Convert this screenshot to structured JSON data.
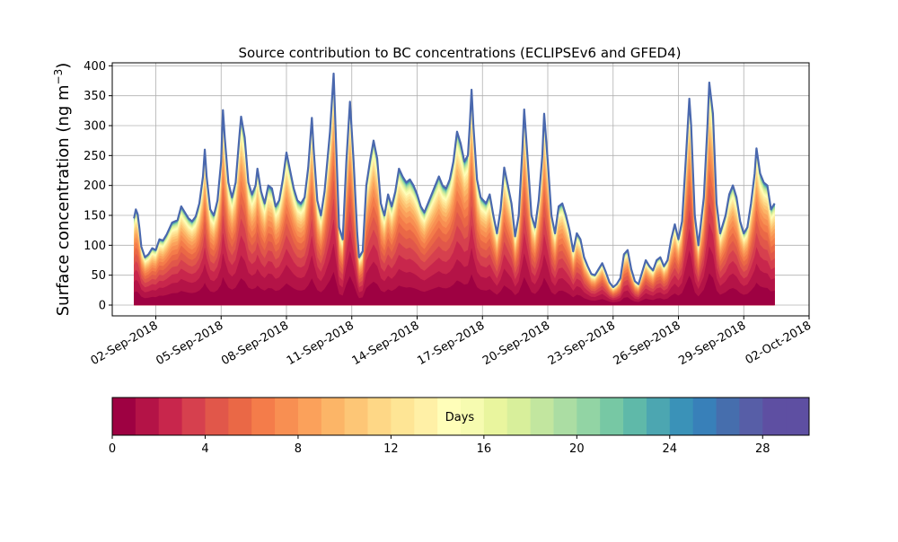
{
  "chart_data": [
    {
      "type": "area",
      "title": "Source contribution to BC concentrations (ECLIPSEv6 and GFED4)",
      "ylabel": "Surface concentration (ng m",
      "ylabel_sup": "−3",
      "ylabel_close": ")",
      "xlabel": "",
      "x_start": "2018-09-01",
      "x_end": "2018-09-30",
      "x_range": [
        "2018-08-31",
        "2018-10-02"
      ],
      "xticks": [
        "02-Sep-2018",
        "05-Sep-2018",
        "08-Sep-2018",
        "11-Sep-2018",
        "14-Sep-2018",
        "17-Sep-2018",
        "20-Sep-2018",
        "23-Sep-2018",
        "26-Sep-2018",
        "29-Sep-2018",
        "02-Oct-2018"
      ],
      "ylim": [
        -18,
        405
      ],
      "yticks": [
        "0",
        "50",
        "100",
        "150",
        "200",
        "250",
        "300",
        "350",
        "400"
      ],
      "grid": true,
      "stack_layers": 30,
      "series_note": "stacked contribution by age of emission (days 0 to 30)",
      "total": [
        [
          "2018-09-01T00",
          145
        ],
        [
          "2018-09-01T02",
          160
        ],
        [
          "2018-09-01T04",
          152
        ],
        [
          "2018-09-01T06",
          128
        ],
        [
          "2018-09-01T08",
          98
        ],
        [
          "2018-09-01T12",
          80
        ],
        [
          "2018-09-01T16",
          85
        ],
        [
          "2018-09-01T20",
          95
        ],
        [
          "2018-09-02T00",
          92
        ],
        [
          "2018-09-02T04",
          110
        ],
        [
          "2018-09-02T08",
          108
        ],
        [
          "2018-09-02T12",
          118
        ],
        [
          "2018-09-02T18",
          138
        ],
        [
          "2018-09-03T00",
          142
        ],
        [
          "2018-09-03T04",
          165
        ],
        [
          "2018-09-03T08",
          155
        ],
        [
          "2018-09-03T12",
          145
        ],
        [
          "2018-09-03T16",
          140
        ],
        [
          "2018-09-03T20",
          148
        ],
        [
          "2018-09-04T00",
          170
        ],
        [
          "2018-09-04T04",
          215
        ],
        [
          "2018-09-04T06",
          260
        ],
        [
          "2018-09-04T08",
          215
        ],
        [
          "2018-09-04T12",
          160
        ],
        [
          "2018-09-04T16",
          150
        ],
        [
          "2018-09-04T20",
          175
        ],
        [
          "2018-09-05T00",
          240
        ],
        [
          "2018-09-05T02",
          326
        ],
        [
          "2018-09-05T04",
          280
        ],
        [
          "2018-09-05T08",
          205
        ],
        [
          "2018-09-05T12",
          180
        ],
        [
          "2018-09-05T16",
          205
        ],
        [
          "2018-09-05T20",
          280
        ],
        [
          "2018-09-05T22",
          315
        ],
        [
          "2018-09-06T02",
          280
        ],
        [
          "2018-09-06T06",
          205
        ],
        [
          "2018-09-06T10",
          185
        ],
        [
          "2018-09-06T14",
          200
        ],
        [
          "2018-09-06T16",
          228
        ],
        [
          "2018-09-06T20",
          190
        ],
        [
          "2018-09-07T00",
          170
        ],
        [
          "2018-09-07T04",
          200
        ],
        [
          "2018-09-07T08",
          195
        ],
        [
          "2018-09-07T12",
          165
        ],
        [
          "2018-09-07T16",
          175
        ],
        [
          "2018-09-07T20",
          210
        ],
        [
          "2018-09-08T00",
          255
        ],
        [
          "2018-09-08T04",
          225
        ],
        [
          "2018-09-08T08",
          195
        ],
        [
          "2018-09-08T12",
          175
        ],
        [
          "2018-09-08T16",
          170
        ],
        [
          "2018-09-08T20",
          180
        ],
        [
          "2018-09-09T00",
          230
        ],
        [
          "2018-09-09T04",
          313
        ],
        [
          "2018-09-09T06",
          260
        ],
        [
          "2018-09-09T10",
          175
        ],
        [
          "2018-09-09T14",
          150
        ],
        [
          "2018-09-09T18",
          190
        ],
        [
          "2018-09-10T00",
          290
        ],
        [
          "2018-09-10T04",
          387
        ],
        [
          "2018-09-10T06",
          300
        ],
        [
          "2018-09-10T10",
          130
        ],
        [
          "2018-09-10T14",
          110
        ],
        [
          "2018-09-10T18",
          240
        ],
        [
          "2018-09-10T22",
          340
        ],
        [
          "2018-09-11T02",
          240
        ],
        [
          "2018-09-11T06",
          120
        ],
        [
          "2018-09-11T08",
          80
        ],
        [
          "2018-09-11T12",
          90
        ],
        [
          "2018-09-11T16",
          200
        ],
        [
          "2018-09-11T20",
          240
        ],
        [
          "2018-09-12T00",
          275
        ],
        [
          "2018-09-12T04",
          245
        ],
        [
          "2018-09-12T08",
          170
        ],
        [
          "2018-09-12T12",
          150
        ],
        [
          "2018-09-12T16",
          185
        ],
        [
          "2018-09-12T20",
          165
        ],
        [
          "2018-09-13T00",
          190
        ],
        [
          "2018-09-13T04",
          228
        ],
        [
          "2018-09-13T08",
          215
        ],
        [
          "2018-09-13T12",
          205
        ],
        [
          "2018-09-13T16",
          210
        ],
        [
          "2018-09-13T20",
          200
        ],
        [
          "2018-09-14T00",
          185
        ],
        [
          "2018-09-14T04",
          165
        ],
        [
          "2018-09-14T08",
          155
        ],
        [
          "2018-09-14T12",
          170
        ],
        [
          "2018-09-14T16",
          185
        ],
        [
          "2018-09-14T20",
          200
        ],
        [
          "2018-09-15T00",
          215
        ],
        [
          "2018-09-15T04",
          200
        ],
        [
          "2018-09-15T08",
          195
        ],
        [
          "2018-09-15T12",
          210
        ],
        [
          "2018-09-15T16",
          240
        ],
        [
          "2018-09-15T20",
          290
        ],
        [
          "2018-09-16T00",
          270
        ],
        [
          "2018-09-16T04",
          240
        ],
        [
          "2018-09-16T08",
          250
        ],
        [
          "2018-09-16T10",
          300
        ],
        [
          "2018-09-16T12",
          360
        ],
        [
          "2018-09-16T14",
          300
        ],
        [
          "2018-09-16T18",
          210
        ],
        [
          "2018-09-16T22",
          180
        ],
        [
          "2018-09-17T04",
          170
        ],
        [
          "2018-09-17T08",
          185
        ],
        [
          "2018-09-17T12",
          150
        ],
        [
          "2018-09-17T16",
          120
        ],
        [
          "2018-09-17T20",
          160
        ],
        [
          "2018-09-18T00",
          230
        ],
        [
          "2018-09-18T04",
          200
        ],
        [
          "2018-09-18T08",
          170
        ],
        [
          "2018-09-18T12",
          115
        ],
        [
          "2018-09-18T16",
          150
        ],
        [
          "2018-09-18T20",
          260
        ],
        [
          "2018-09-18T22",
          327
        ],
        [
          "2018-09-19T02",
          240
        ],
        [
          "2018-09-19T06",
          150
        ],
        [
          "2018-09-19T10",
          130
        ],
        [
          "2018-09-19T14",
          175
        ],
        [
          "2018-09-19T18",
          250
        ],
        [
          "2018-09-19T20",
          320
        ],
        [
          "2018-09-20T00",
          240
        ],
        [
          "2018-09-20T04",
          150
        ],
        [
          "2018-09-20T08",
          120
        ],
        [
          "2018-09-20T12",
          165
        ],
        [
          "2018-09-20T16",
          170
        ],
        [
          "2018-09-20T20",
          150
        ],
        [
          "2018-09-21T00",
          125
        ],
        [
          "2018-09-21T04",
          90
        ],
        [
          "2018-09-21T08",
          120
        ],
        [
          "2018-09-21T12",
          110
        ],
        [
          "2018-09-21T16",
          80
        ],
        [
          "2018-09-21T20",
          65
        ],
        [
          "2018-09-22T00",
          52
        ],
        [
          "2018-09-22T04",
          50
        ],
        [
          "2018-09-22T08",
          60
        ],
        [
          "2018-09-22T12",
          70
        ],
        [
          "2018-09-22T16",
          55
        ],
        [
          "2018-09-22T20",
          38
        ],
        [
          "2018-09-23T00",
          30
        ],
        [
          "2018-09-23T04",
          35
        ],
        [
          "2018-09-23T08",
          45
        ],
        [
          "2018-09-23T12",
          85
        ],
        [
          "2018-09-23T16",
          92
        ],
        [
          "2018-09-23T20",
          60
        ],
        [
          "2018-09-24T00",
          40
        ],
        [
          "2018-09-24T04",
          35
        ],
        [
          "2018-09-24T08",
          55
        ],
        [
          "2018-09-24T12",
          75
        ],
        [
          "2018-09-24T16",
          65
        ],
        [
          "2018-09-24T20",
          58
        ],
        [
          "2018-09-25T00",
          75
        ],
        [
          "2018-09-25T04",
          80
        ],
        [
          "2018-09-25T08",
          65
        ],
        [
          "2018-09-25T12",
          75
        ],
        [
          "2018-09-25T16",
          110
        ],
        [
          "2018-09-25T20",
          135
        ],
        [
          "2018-09-26T00",
          110
        ],
        [
          "2018-09-26T04",
          140
        ],
        [
          "2018-09-26T08",
          240
        ],
        [
          "2018-09-26T12",
          345
        ],
        [
          "2018-09-26T14",
          300
        ],
        [
          "2018-09-26T18",
          150
        ],
        [
          "2018-09-26T22",
          100
        ],
        [
          "2018-09-27T04",
          180
        ],
        [
          "2018-09-27T08",
          300
        ],
        [
          "2018-09-27T10",
          372
        ],
        [
          "2018-09-27T14",
          320
        ],
        [
          "2018-09-27T18",
          170
        ],
        [
          "2018-09-27T22",
          120
        ],
        [
          "2018-09-28T04",
          150
        ],
        [
          "2018-09-28T08",
          185
        ],
        [
          "2018-09-28T12",
          200
        ],
        [
          "2018-09-28T16",
          180
        ],
        [
          "2018-09-28T20",
          140
        ],
        [
          "2018-09-29T00",
          120
        ],
        [
          "2018-09-29T04",
          130
        ],
        [
          "2018-09-29T08",
          170
        ],
        [
          "2018-09-29T12",
          220
        ],
        [
          "2018-09-29T14",
          262
        ],
        [
          "2018-09-29T18",
          220
        ],
        [
          "2018-09-29T22",
          205
        ],
        [
          "2018-09-30T02",
          200
        ],
        [
          "2018-09-30T06",
          160
        ],
        [
          "2018-09-30T10",
          170
        ]
      ]
    },
    {
      "type": "colorbar",
      "label": "Days",
      "range": [
        0,
        30
      ],
      "steps": 30,
      "ticks": [
        "0",
        "4",
        "8",
        "12",
        "16",
        "20",
        "24",
        "28"
      ],
      "colors": [
        "#9e0142",
        "#b41347",
        "#c8264c",
        "#d6404e",
        "#e1574a",
        "#ea6846",
        "#f47c4a",
        "#f88f52",
        "#fba15b",
        "#fcb567",
        "#fdc676",
        "#fed786",
        "#fee595",
        "#fff0a6",
        "#fffeb9",
        "#f6fbb0",
        "#e9f59e",
        "#d8ef9b",
        "#c2e69f",
        "#abdda3",
        "#92d4a4",
        "#77c8a4",
        "#5fb9a9",
        "#4ca6b1",
        "#3a92b8",
        "#3880b9",
        "#466ead",
        "#575ea7",
        "#5e4fa2",
        "#5e4fa2"
      ]
    }
  ]
}
